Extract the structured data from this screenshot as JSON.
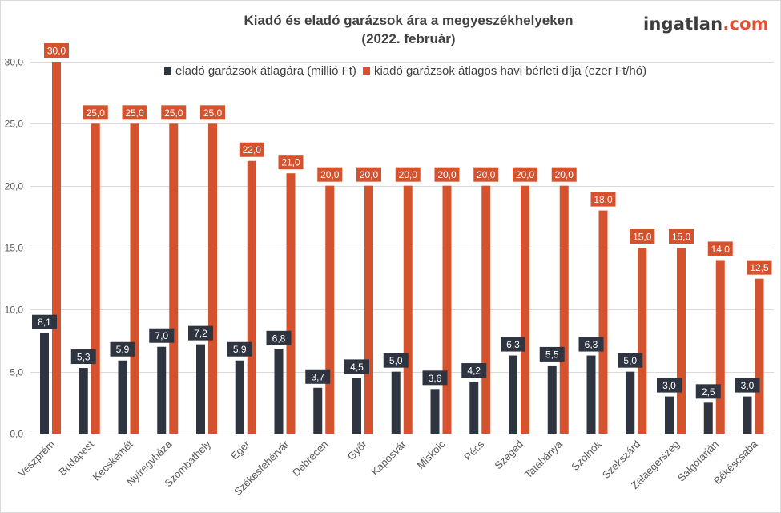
{
  "logo": {
    "text": "ingatlan",
    "suffix": ".com"
  },
  "chart_data": {
    "type": "bar",
    "title": "Kiadó és eladó garázsok ára a megyeszékhelyeken",
    "subtitle": "(2022. február)",
    "xlabel": "",
    "ylabel": "",
    "ylim": [
      0,
      30
    ],
    "yticks": [
      0,
      5,
      10,
      15,
      20,
      25,
      30
    ],
    "ytick_labels": [
      "0,0",
      "5,0",
      "10,0",
      "15,0",
      "20,0",
      "25,0",
      "30,0"
    ],
    "grid": true,
    "legend_position": "top",
    "categories": [
      "Veszprém",
      "Budapest",
      "Kecskemét",
      "Nyíregyháza",
      "Szombathely",
      "Eger",
      "Székesfehérvár",
      "Debrecen",
      "Győr",
      "Kaposvár",
      "Miskolc",
      "Pécs",
      "Szeged",
      "Tatabánya",
      "Szolnok",
      "Szekszárd",
      "Zalaegerszeg",
      "Salgótarján",
      "Békéscsaba"
    ],
    "series": [
      {
        "name": "eladó garázsok átlagára (millió Ft)",
        "color": "#2e3440",
        "values": [
          8.1,
          5.3,
          5.9,
          7.0,
          7.2,
          5.9,
          6.8,
          3.7,
          4.5,
          5.0,
          3.6,
          4.2,
          6.3,
          5.5,
          6.3,
          5.0,
          3.0,
          2.5,
          3.0
        ],
        "labels": [
          "8,1",
          "5,3",
          "5,9",
          "7,0",
          "7,2",
          "5,9",
          "6,8",
          "3,7",
          "4,5",
          "5,0",
          "3,6",
          "4,2",
          "6,3",
          "5,5",
          "6,3",
          "5,0",
          "3,0",
          "2,5",
          "3,0"
        ]
      },
      {
        "name": "kiadó garázsok átlagos havi bérleti díja (ezer Ft/hó)",
        "color": "#d4522d",
        "values": [
          30.0,
          25.0,
          25.0,
          25.0,
          25.0,
          22.0,
          21.0,
          20.0,
          20.0,
          20.0,
          20.0,
          20.0,
          20.0,
          20.0,
          18.0,
          15.0,
          15.0,
          14.0,
          12.5
        ],
        "labels": [
          "30,0",
          "25,0",
          "25,0",
          "25,0",
          "25,0",
          "22,0",
          "21,0",
          "20,0",
          "20,0",
          "20,0",
          "20,0",
          "20,0",
          "20,0",
          "20,0",
          "18,0",
          "15,0",
          "15,0",
          "14,0",
          "12,5"
        ]
      }
    ]
  }
}
